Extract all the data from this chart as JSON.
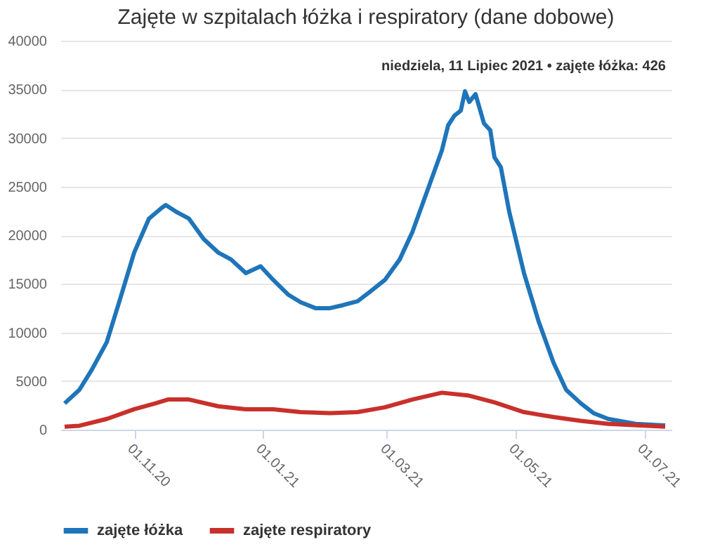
{
  "chart_data": {
    "type": "line",
    "title": "Zajęte w szpitalach łóżka i respiratory (dane dobowe)",
    "xlim": [
      "2020-09-27",
      "2021-07-14"
    ],
    "xticks": [
      {
        "value": "2020-11-01",
        "label": "01.11.20"
      },
      {
        "value": "2021-01-01",
        "label": "01.01.21"
      },
      {
        "value": "2021-03-01",
        "label": "01.03.21"
      },
      {
        "value": "2021-05-01",
        "label": "01.05.21"
      },
      {
        "value": "2021-07-01",
        "label": "01.07.21"
      }
    ],
    "ylim": [
      0,
      40000
    ],
    "yticks": [
      0,
      5000,
      10000,
      15000,
      20000,
      25000,
      30000,
      35000,
      40000
    ],
    "grid": "y",
    "legend": "bottom",
    "marker": "none",
    "line_style": "solid",
    "series": [
      {
        "name": "zajęte łóżka",
        "color": "#1f75b9",
        "x": [
          "2020-09-29",
          "2020-10-06",
          "2020-10-12",
          "2020-10-19",
          "2020-10-25",
          "2020-11-01",
          "2020-11-08",
          "2020-11-14",
          "2020-11-16",
          "2020-11-21",
          "2020-11-27",
          "2020-12-04",
          "2020-12-11",
          "2020-12-17",
          "2020-12-24",
          "2020-12-31",
          "2021-01-06",
          "2021-01-13",
          "2021-01-19",
          "2021-01-26",
          "2021-02-02",
          "2021-02-08",
          "2021-02-15",
          "2021-02-21",
          "2021-02-28",
          "2021-03-07",
          "2021-03-13",
          "2021-03-20",
          "2021-03-27",
          "2021-03-30",
          "2021-04-02",
          "2021-04-05",
          "2021-04-07",
          "2021-04-09",
          "2021-04-12",
          "2021-04-16",
          "2021-04-19",
          "2021-04-21",
          "2021-04-24",
          "2021-04-28",
          "2021-05-05",
          "2021-05-12",
          "2021-05-19",
          "2021-05-25",
          "2021-06-01",
          "2021-06-07",
          "2021-06-14",
          "2021-06-27",
          "2021-07-11"
        ],
        "values": [
          2700,
          4100,
          6200,
          9000,
          13200,
          18200,
          21700,
          22800,
          23100,
          22400,
          21700,
          19600,
          18200,
          17500,
          16100,
          16800,
          15400,
          13900,
          13100,
          12500,
          12500,
          12800,
          13200,
          14200,
          15400,
          17500,
          20300,
          24500,
          28700,
          31300,
          32300,
          32800,
          34800,
          33700,
          34500,
          31500,
          30800,
          28000,
          27000,
          22400,
          16100,
          11100,
          6900,
          4100,
          2700,
          1700,
          1100,
          600,
          426
        ]
      },
      {
        "name": "zajęte respiratory",
        "color": "#c8302c",
        "x": [
          "2020-09-29",
          "2020-10-06",
          "2020-10-19",
          "2020-11-01",
          "2020-11-11",
          "2020-11-17",
          "2020-11-27",
          "2020-12-11",
          "2020-12-24",
          "2021-01-06",
          "2021-01-19",
          "2021-02-02",
          "2021-02-15",
          "2021-02-28",
          "2021-03-13",
          "2021-03-27",
          "2021-04-09",
          "2021-04-21",
          "2021-05-05",
          "2021-05-19",
          "2021-06-01",
          "2021-06-14",
          "2021-07-11"
        ],
        "values": [
          300,
          400,
          1100,
          2100,
          2700,
          3100,
          3100,
          2400,
          2100,
          2100,
          1800,
          1700,
          1800,
          2300,
          3100,
          3800,
          3500,
          2800,
          1800,
          1300,
          900,
          600,
          300
        ]
      }
    ],
    "annotations": [
      "niedziela, 11 Lipiec 2021 • zajęte łóżka: 426"
    ]
  }
}
